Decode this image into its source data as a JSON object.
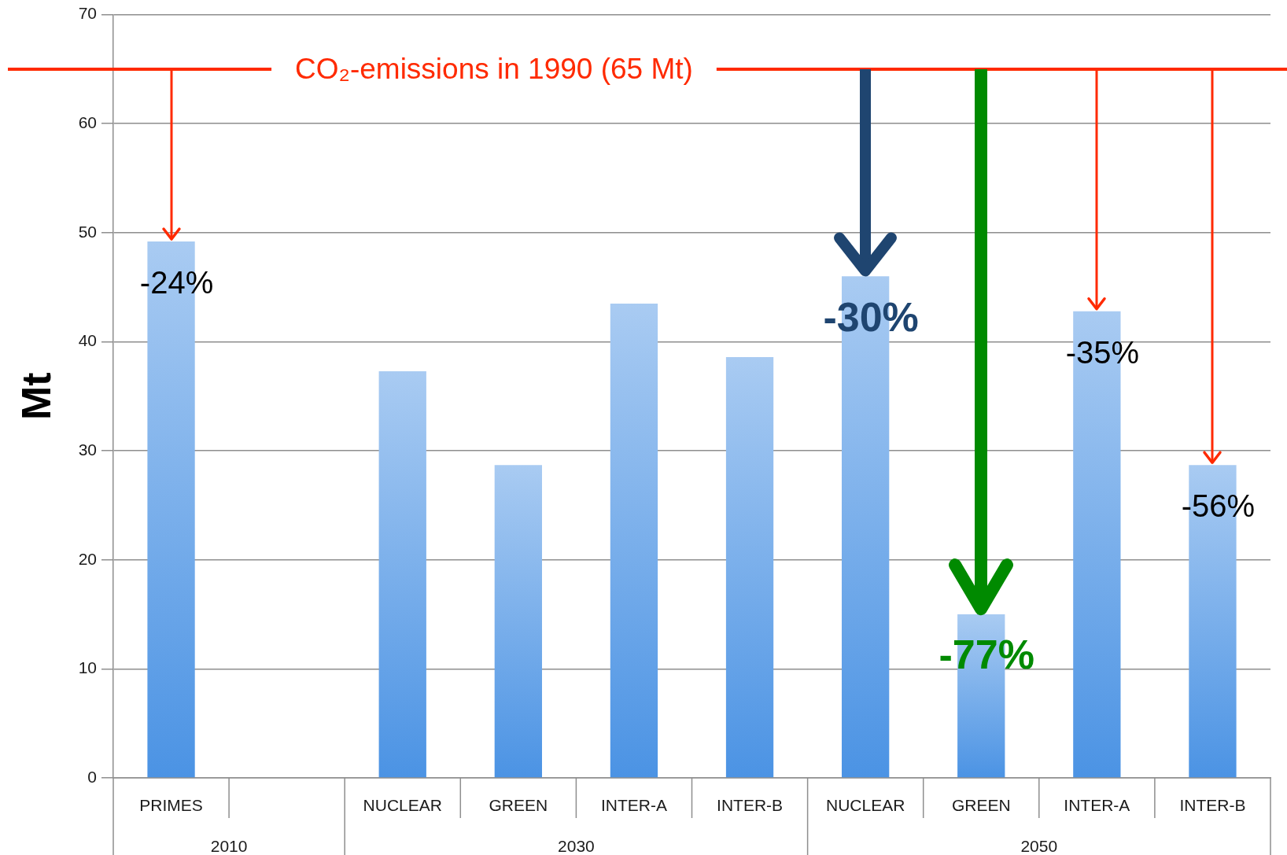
{
  "chart_data": {
    "type": "bar",
    "categories": [
      "PRIMES",
      null,
      "NUCLEAR",
      "GREEN",
      "INTER-A",
      "INTER-B",
      "NUCLEAR",
      "GREEN",
      "INTER-A",
      "INTER-B"
    ],
    "values": [
      49.2,
      null,
      37.3,
      28.7,
      43.5,
      38.6,
      46.0,
      15.0,
      42.8,
      28.7
    ],
    "color": "#7aafeb",
    "ylabel": "Mt",
    "ylim": [
      0,
      70
    ],
    "yticks": [
      0,
      10,
      20,
      30,
      40,
      50,
      60,
      70
    ],
    "grid": "y",
    "ref_lines": [
      {
        "axis": "y",
        "value": 65,
        "label": "CO₂-emissions in 1990 (65 Mt)",
        "color": "#ff2a00"
      }
    ],
    "annotations": [
      "2010",
      "2030",
      "2050",
      {
        "text": "-24%",
        "x": "PRIMES",
        "y": 49.2
      },
      {
        "text": "-30%",
        "y": 46.0
      },
      {
        "text": "-77%",
        "y": 15.0
      },
      {
        "text": "-35%",
        "y": 42.8
      },
      {
        "text": "-56%",
        "y": 28.7
      }
    ]
  }
}
